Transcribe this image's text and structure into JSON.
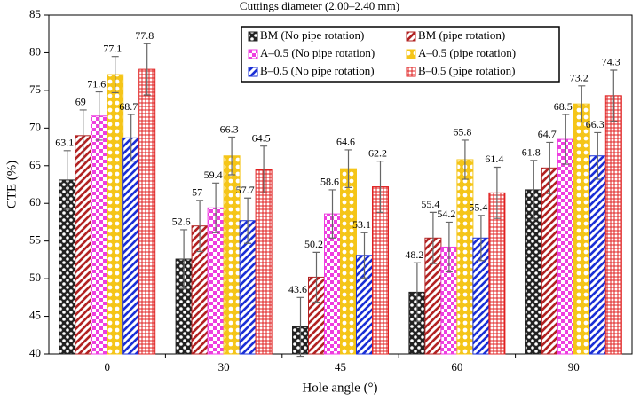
{
  "chart_data": {
    "type": "bar",
    "title": "Cuttings diameter (2.00–2.40 mm)",
    "x_label": "Hole angle (°)",
    "y_label": "CTE (%)",
    "categories": [
      "0",
      "30",
      "45",
      "60",
      "90"
    ],
    "ylim": [
      40,
      85
    ],
    "yticks": [
      40,
      45,
      50,
      55,
      60,
      65,
      70,
      75,
      80,
      85
    ],
    "series": [
      {
        "name": "BM (No pipe rotation)",
        "color": "#222222",
        "pattern": "crosshatch",
        "values": [
          63.1,
          52.6,
          43.6,
          48.2,
          61.8
        ],
        "errors": [
          3.9,
          3.9,
          3.9,
          3.9,
          3.9
        ]
      },
      {
        "name": "BM (pipe rotation)",
        "color": "#b22222",
        "pattern": "stripes",
        "values": [
          69,
          57,
          50.2,
          55.4,
          64.7
        ],
        "errors": [
          3.4,
          3.4,
          3.3,
          3.4,
          3.4
        ]
      },
      {
        "name": "A–0.5 (No pipe rotation)",
        "color": "#ee3ee0",
        "pattern": "checker",
        "values": [
          71.6,
          59.4,
          58.6,
          54.2,
          68.5
        ],
        "errors": [
          3.2,
          3.3,
          3.2,
          3.3,
          3.3
        ]
      },
      {
        "name": "A–0.5 (pipe rotation)",
        "color": "#f5c518",
        "pattern": "circles",
        "values": [
          77.1,
          66.3,
          64.6,
          65.8,
          73.2
        ],
        "errors": [
          2.4,
          2.5,
          2.5,
          2.6,
          2.4
        ]
      },
      {
        "name": "B–0.5 (No pipe rotation)",
        "color": "#1a2fd6",
        "pattern": "stripes",
        "values": [
          68.7,
          57.7,
          53.1,
          55.4,
          66.3
        ],
        "errors": [
          3.1,
          3.0,
          3.0,
          3.0,
          3.1
        ]
      },
      {
        "name": "B–0.5 (pipe rotation)",
        "color": "#e02020",
        "pattern": "checker-outline",
        "values": [
          77.8,
          64.5,
          62.2,
          61.4,
          74.3
        ],
        "errors": [
          3.4,
          3.1,
          3.4,
          3.4,
          3.4
        ]
      }
    ]
  }
}
